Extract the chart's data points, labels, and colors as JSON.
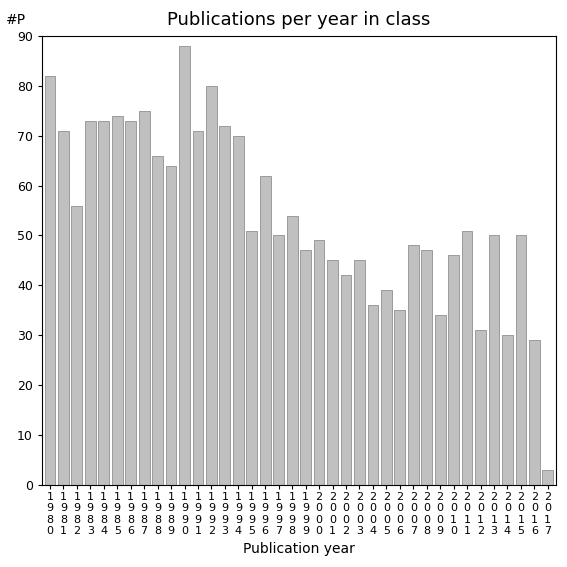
{
  "title": "Publications per year in class",
  "xlabel": "Publication year",
  "ylabel": "#P",
  "years": [
    "1980",
    "1981",
    "1982",
    "1983",
    "1984",
    "1985",
    "1986",
    "1987",
    "1988",
    "1989",
    "1990",
    "1991",
    "1992",
    "1993",
    "1994",
    "1995",
    "1996",
    "1997",
    "1998",
    "1999",
    "2000",
    "2001",
    "2002",
    "2003",
    "2004",
    "2005",
    "2006",
    "2007",
    "2008",
    "2009",
    "2010",
    "2011",
    "2012",
    "2013",
    "2014",
    "2015",
    "2016",
    "2017"
  ],
  "values": [
    82,
    71,
    56,
    73,
    73,
    74,
    73,
    75,
    66,
    64,
    88,
    71,
    80,
    72,
    70,
    51,
    62,
    50,
    54,
    47,
    49,
    45,
    42,
    45,
    36,
    39,
    35,
    48,
    47,
    34,
    46,
    51,
    31,
    50,
    30,
    50,
    29,
    3
  ],
  "bar_color": "#c0c0c0",
  "bar_edgecolor": "#808080",
  "ylim": [
    0,
    90
  ],
  "yticks": [
    0,
    10,
    20,
    30,
    40,
    50,
    60,
    70,
    80,
    90
  ],
  "background_color": "#ffffff",
  "title_fontsize": 13,
  "axis_fontsize": 10,
  "tick_fontsize": 8
}
